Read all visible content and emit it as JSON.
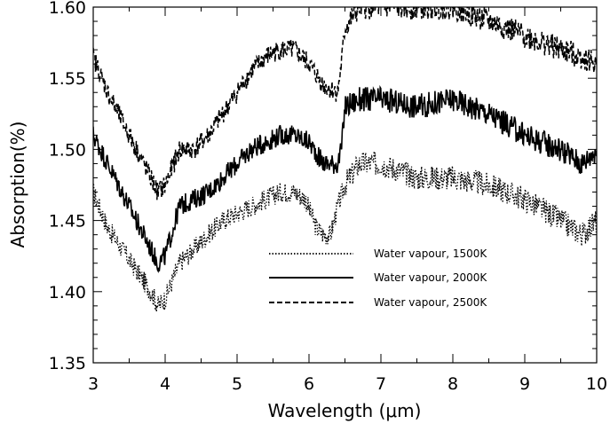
{
  "chart_data": {
    "type": "line",
    "xlabel": "Wavelength (μm)",
    "ylabel": "Absorption(%)",
    "xlim": [
      3,
      10
    ],
    "ylim": [
      1.35,
      1.6
    ],
    "xticks": [
      3,
      4,
      5,
      6,
      7,
      8,
      9,
      10
    ],
    "yticks": [
      1.35,
      1.4,
      1.45,
      1.5,
      1.55,
      1.6
    ],
    "ytick_labels": [
      "1.35",
      "1.40",
      "1.45",
      "1.50",
      "1.55",
      "1.60"
    ],
    "grid": false,
    "legend_position": "center-right",
    "series": [
      {
        "name": "Water vapour, 1500K",
        "style": "dotted",
        "x": [
          3.0,
          3.2,
          3.4,
          3.6,
          3.8,
          3.9,
          4.0,
          4.2,
          4.4,
          4.6,
          4.8,
          5.0,
          5.2,
          5.4,
          5.6,
          5.8,
          5.95,
          6.1,
          6.2,
          6.3,
          6.4,
          6.5,
          6.7,
          7.0,
          7.5,
          8.0,
          8.5,
          9.0,
          9.5,
          9.8,
          10.0
        ],
        "y": [
          1.47,
          1.445,
          1.43,
          1.415,
          1.4,
          1.39,
          1.395,
          1.42,
          1.43,
          1.44,
          1.45,
          1.455,
          1.46,
          1.465,
          1.47,
          1.47,
          1.465,
          1.445,
          1.44,
          1.44,
          1.46,
          1.475,
          1.49,
          1.49,
          1.48,
          1.48,
          1.475,
          1.465,
          1.45,
          1.44,
          1.45
        ],
        "noise": 0.008
      },
      {
        "name": "Water vapour, 2000K",
        "style": "solid",
        "x": [
          3.0,
          3.2,
          3.4,
          3.6,
          3.8,
          3.9,
          4.0,
          4.2,
          4.4,
          4.6,
          4.8,
          5.0,
          5.2,
          5.4,
          5.6,
          5.8,
          6.0,
          6.2,
          6.4,
          6.45,
          6.5,
          6.7,
          7.0,
          7.5,
          8.0,
          8.5,
          9.0,
          9.5,
          9.8,
          10.0
        ],
        "y": [
          1.51,
          1.49,
          1.47,
          1.45,
          1.43,
          1.42,
          1.425,
          1.46,
          1.465,
          1.47,
          1.48,
          1.49,
          1.5,
          1.505,
          1.51,
          1.51,
          1.505,
          1.49,
          1.49,
          1.5,
          1.53,
          1.535,
          1.535,
          1.53,
          1.535,
          1.525,
          1.51,
          1.5,
          1.49,
          1.5
        ],
        "noise": 0.008
      },
      {
        "name": "Water vapour, 2500K",
        "style": "dashed",
        "x": [
          3.0,
          3.2,
          3.4,
          3.6,
          3.8,
          3.9,
          4.0,
          4.2,
          4.4,
          4.6,
          4.8,
          5.0,
          5.2,
          5.4,
          5.6,
          5.8,
          6.0,
          6.2,
          6.4,
          6.45,
          6.5,
          6.7,
          7.0,
          7.5,
          8.0,
          8.5,
          9.0,
          9.5,
          9.8,
          10.0
        ],
        "y": [
          1.565,
          1.54,
          1.52,
          1.5,
          1.48,
          1.47,
          1.475,
          1.5,
          1.5,
          1.51,
          1.525,
          1.54,
          1.555,
          1.565,
          1.57,
          1.57,
          1.56,
          1.545,
          1.54,
          1.56,
          1.585,
          1.6,
          1.6,
          1.6,
          1.6,
          1.59,
          1.58,
          1.57,
          1.565,
          1.56
        ],
        "noise": 0.008
      }
    ]
  }
}
